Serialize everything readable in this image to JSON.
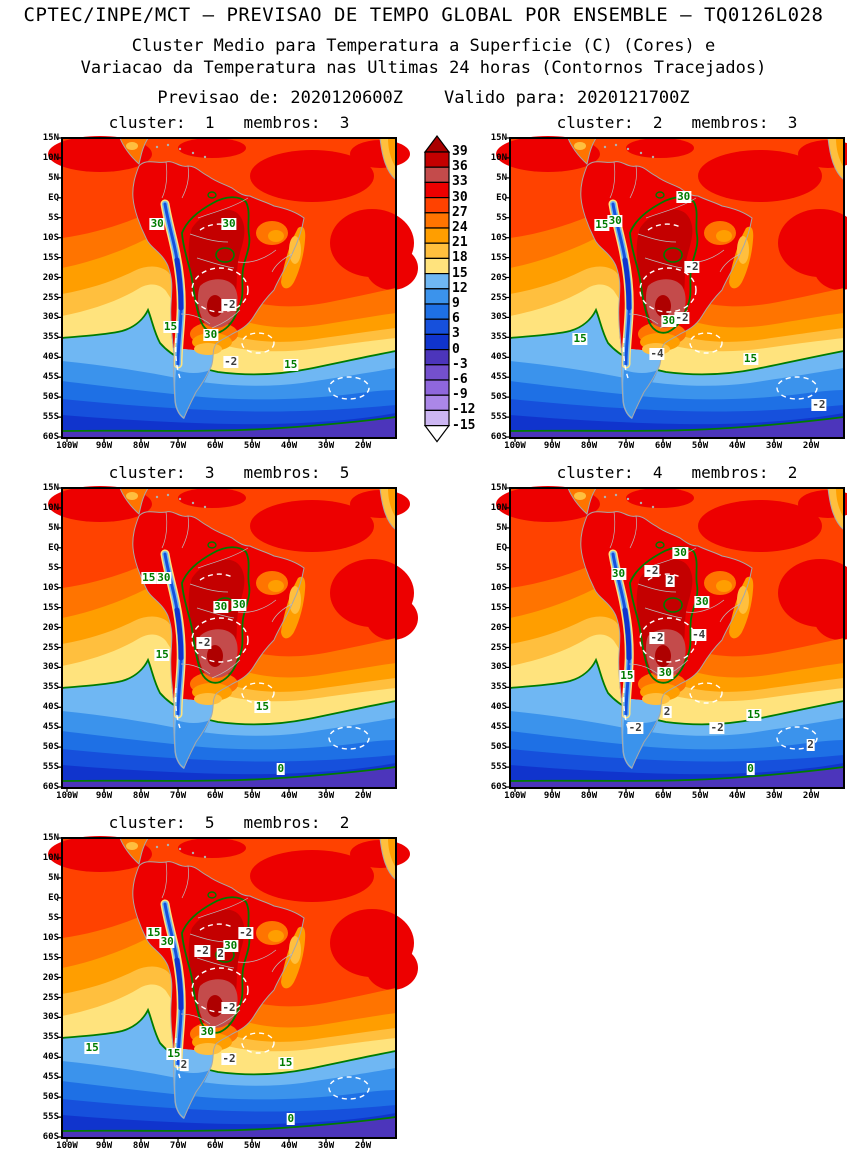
{
  "header": {
    "title": "CPTEC/INPE/MCT — PREVISAO DE TEMPO GLOBAL POR ENSEMBLE — TQ0126L028",
    "subtitle_line1": "Cluster Medio para Temperatura a Superficie (C) (Cores) e",
    "subtitle_line2": "Variacao da Temperatura nas Ultimas 24 horas (Contornos Tracejados)",
    "forecast_from_label": "Previsao de:",
    "forecast_from_value": "2020120600Z",
    "valid_for_label": "Valido para:",
    "valid_for_value": "2020121700Z"
  },
  "map_axes": {
    "lat_labels": [
      "15N",
      "10N",
      "5N",
      "EQ",
      "5S",
      "10S",
      "15S",
      "20S",
      "25S",
      "30S",
      "35S",
      "40S",
      "45S",
      "50S",
      "55S",
      "60S"
    ],
    "lon_labels": [
      "100W",
      "90W",
      "80W",
      "70W",
      "60W",
      "50W",
      "40W",
      "30W",
      "20W"
    ]
  },
  "chart_data": {
    "type": "heatmap",
    "subtype": "filled-contour-map-ensemble-clusters",
    "title": "CPTEC/INPE/MCT — PREVISAO DE TEMPO GLOBAL POR ENSEMBLE — TQ0126L028",
    "shaded_variable": "Cluster Medio para Temperatura a Superficie (C) (Cores)",
    "contoured_variable": "Variacao da Temperatura nas Ultimas 24 horas (Contornos Tracejados)",
    "init_time": "2020120600Z",
    "valid_time": "2020121700Z",
    "region": "South America 15N-60S, 100W-10W",
    "colorbar": {
      "units": "C",
      "tick_labels": [
        "39",
        "36",
        "33",
        "30",
        "27",
        "24",
        "21",
        "18",
        "15",
        "12",
        "9",
        "6",
        "3",
        "0",
        "-3",
        "-6",
        "-9",
        "-12",
        "-15"
      ],
      "box_colors": [
        "#c40000",
        "#c44b4b",
        "#ed0000",
        "#ff4200",
        "#ff7400",
        "#ff9e00",
        "#ffbf3e",
        "#ffe37d",
        "#6fb7f3",
        "#3b93ec",
        "#1e70e5",
        "#1650dc",
        "#1034cd",
        "#4c35bb",
        "#7450cd",
        "#8f67dc",
        "#ab87e8",
        "#ccb6f2"
      ],
      "arrow_top_color": "#a90000",
      "arrow_bottom_color": "#ffffff"
    },
    "contour_colors": {
      "temperature": "#007c00",
      "variation": "#ffffff"
    },
    "panels": [
      {
        "cluster": 1,
        "membros": 3,
        "title": "cluster:  1   membros:  3",
        "contour_labels": [
          {
            "value": "30",
            "type": "temp",
            "x": 0.285,
            "y": 0.285
          },
          {
            "value": "30",
            "type": "temp",
            "x": 0.5,
            "y": 0.285
          },
          {
            "value": "-2",
            "type": "var",
            "x": 0.5,
            "y": 0.555
          },
          {
            "value": "15",
            "type": "temp",
            "x": 0.325,
            "y": 0.63
          },
          {
            "value": "30",
            "type": "temp",
            "x": 0.445,
            "y": 0.655
          },
          {
            "value": "-2",
            "type": "var",
            "x": 0.505,
            "y": 0.745
          },
          {
            "value": "15",
            "type": "temp",
            "x": 0.685,
            "y": 0.755
          }
        ]
      },
      {
        "cluster": 2,
        "membros": 3,
        "title": "cluster:  2   membros:  3",
        "contour_labels": [
          {
            "value": "30",
            "type": "temp",
            "x": 0.52,
            "y": 0.195
          },
          {
            "value": "15",
            "type": "temp",
            "x": 0.275,
            "y": 0.29
          },
          {
            "value": "30",
            "type": "temp",
            "x": 0.315,
            "y": 0.275
          },
          {
            "value": "-2",
            "type": "var",
            "x": 0.545,
            "y": 0.43
          },
          {
            "value": "30",
            "type": "temp",
            "x": 0.475,
            "y": 0.61
          },
          {
            "value": "-2",
            "type": "var",
            "x": 0.515,
            "y": 0.6
          },
          {
            "value": "15",
            "type": "temp",
            "x": 0.21,
            "y": 0.67
          },
          {
            "value": "-4",
            "type": "var",
            "x": 0.44,
            "y": 0.72
          },
          {
            "value": "15",
            "type": "temp",
            "x": 0.72,
            "y": 0.735
          },
          {
            "value": "-2",
            "type": "var",
            "x": 0.925,
            "y": 0.89
          }
        ]
      },
      {
        "cluster": 3,
        "membros": 5,
        "title": "cluster:  3   membros:  5",
        "contour_labels": [
          {
            "value": "15",
            "type": "temp",
            "x": 0.26,
            "y": 0.3
          },
          {
            "value": "30",
            "type": "temp",
            "x": 0.305,
            "y": 0.3
          },
          {
            "value": "30",
            "type": "temp",
            "x": 0.475,
            "y": 0.395
          },
          {
            "value": "30",
            "type": "temp",
            "x": 0.53,
            "y": 0.39
          },
          {
            "value": "-2",
            "type": "var",
            "x": 0.425,
            "y": 0.515
          },
          {
            "value": "15",
            "type": "temp",
            "x": 0.3,
            "y": 0.555
          },
          {
            "value": "15",
            "type": "temp",
            "x": 0.6,
            "y": 0.73
          },
          {
            "value": "0",
            "type": "temp",
            "x": 0.655,
            "y": 0.935
          }
        ]
      },
      {
        "cluster": 4,
        "membros": 2,
        "title": "cluster:  4   membros:  2",
        "contour_labels": [
          {
            "value": "30",
            "type": "temp",
            "x": 0.51,
            "y": 0.215
          },
          {
            "value": "30",
            "type": "temp",
            "x": 0.325,
            "y": 0.285
          },
          {
            "value": "-2",
            "type": "var",
            "x": 0.425,
            "y": 0.275
          },
          {
            "value": "2",
            "type": "var",
            "x": 0.48,
            "y": 0.31
          },
          {
            "value": "30",
            "type": "temp",
            "x": 0.575,
            "y": 0.38
          },
          {
            "value": "-2",
            "type": "var",
            "x": 0.44,
            "y": 0.5
          },
          {
            "value": "-4",
            "type": "var",
            "x": 0.565,
            "y": 0.49
          },
          {
            "value": "15",
            "type": "temp",
            "x": 0.35,
            "y": 0.625
          },
          {
            "value": "30",
            "type": "temp",
            "x": 0.465,
            "y": 0.615
          },
          {
            "value": "2",
            "type": "var",
            "x": 0.47,
            "y": 0.745
          },
          {
            "value": "15",
            "type": "temp",
            "x": 0.73,
            "y": 0.755
          },
          {
            "value": "-2",
            "type": "var",
            "x": 0.375,
            "y": 0.8
          },
          {
            "value": "-2",
            "type": "var",
            "x": 0.62,
            "y": 0.8
          },
          {
            "value": "2",
            "type": "var",
            "x": 0.9,
            "y": 0.855
          },
          {
            "value": "0",
            "type": "temp",
            "x": 0.72,
            "y": 0.935
          }
        ]
      },
      {
        "cluster": 5,
        "membros": 2,
        "title": "cluster:  5   membros:  2",
        "contour_labels": [
          {
            "value": "15",
            "type": "temp",
            "x": 0.275,
            "y": 0.315
          },
          {
            "value": "30",
            "type": "temp",
            "x": 0.315,
            "y": 0.345
          },
          {
            "value": "-2",
            "type": "var",
            "x": 0.55,
            "y": 0.315
          },
          {
            "value": "-2",
            "type": "var",
            "x": 0.42,
            "y": 0.375
          },
          {
            "value": "2",
            "type": "var",
            "x": 0.475,
            "y": 0.385
          },
          {
            "value": "30",
            "type": "temp",
            "x": 0.505,
            "y": 0.36
          },
          {
            "value": "-2",
            "type": "var",
            "x": 0.5,
            "y": 0.565
          },
          {
            "value": "30",
            "type": "temp",
            "x": 0.435,
            "y": 0.645
          },
          {
            "value": "15",
            "type": "temp",
            "x": 0.09,
            "y": 0.7
          },
          {
            "value": "15",
            "type": "temp",
            "x": 0.335,
            "y": 0.72
          },
          {
            "value": "2",
            "type": "var",
            "x": 0.365,
            "y": 0.755
          },
          {
            "value": "-2",
            "type": "var",
            "x": 0.5,
            "y": 0.735
          },
          {
            "value": "15",
            "type": "temp",
            "x": 0.67,
            "y": 0.75
          },
          {
            "value": "0",
            "type": "temp",
            "x": 0.685,
            "y": 0.935
          }
        ]
      }
    ]
  }
}
